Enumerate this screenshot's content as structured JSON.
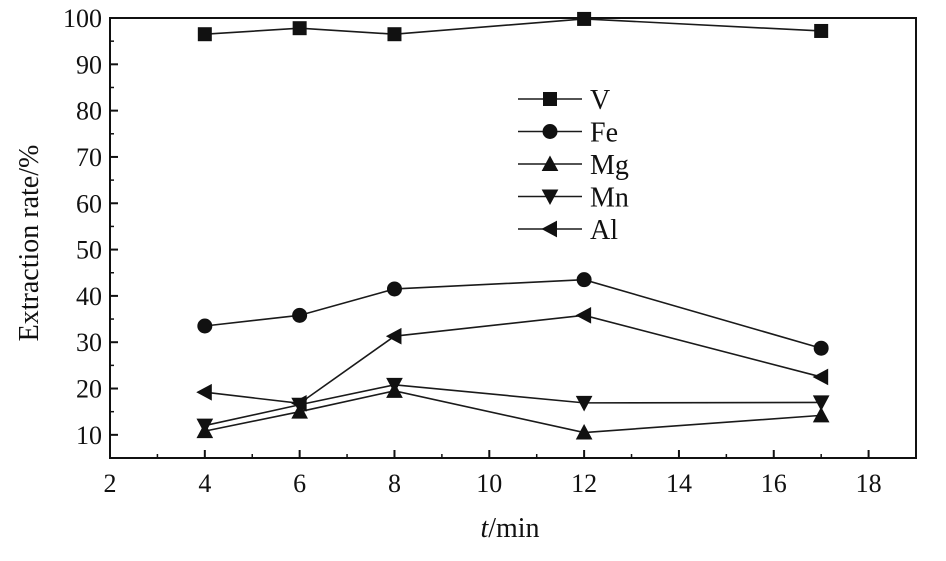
{
  "chart_data": {
    "type": "line",
    "title": "",
    "xlabel_italic": "t",
    "xlabel_rest": "/min",
    "ylabel": "Extraction rate/%",
    "xlim": [
      2,
      19
    ],
    "ylim": [
      5,
      100
    ],
    "xticks": [
      2,
      4,
      6,
      8,
      10,
      12,
      14,
      16,
      18
    ],
    "yticks": [
      10,
      20,
      30,
      40,
      50,
      60,
      70,
      80,
      90,
      100
    ],
    "grid": false,
    "legend_position": "upper-center",
    "x": [
      4,
      6,
      8,
      12,
      17
    ],
    "series": [
      {
        "name": "V",
        "marker": "square",
        "values": [
          96.5,
          97.8,
          96.5,
          99.8,
          97.2
        ]
      },
      {
        "name": "Fe",
        "marker": "circle",
        "values": [
          33.5,
          35.8,
          41.5,
          43.5,
          28.7
        ]
      },
      {
        "name": "Mg",
        "marker": "triangle-up",
        "values": [
          10.8,
          15.0,
          19.5,
          10.5,
          14.2
        ]
      },
      {
        "name": "Mn",
        "marker": "triangle-down",
        "values": [
          12.0,
          16.5,
          20.8,
          16.9,
          17.0
        ]
      },
      {
        "name": "Al",
        "marker": "triangle-left",
        "values": [
          19.2,
          16.8,
          31.3,
          35.8,
          22.5
        ]
      }
    ],
    "colors": {
      "line": "#1a1a1a",
      "marker": "#111111",
      "axis": "#111111"
    }
  }
}
